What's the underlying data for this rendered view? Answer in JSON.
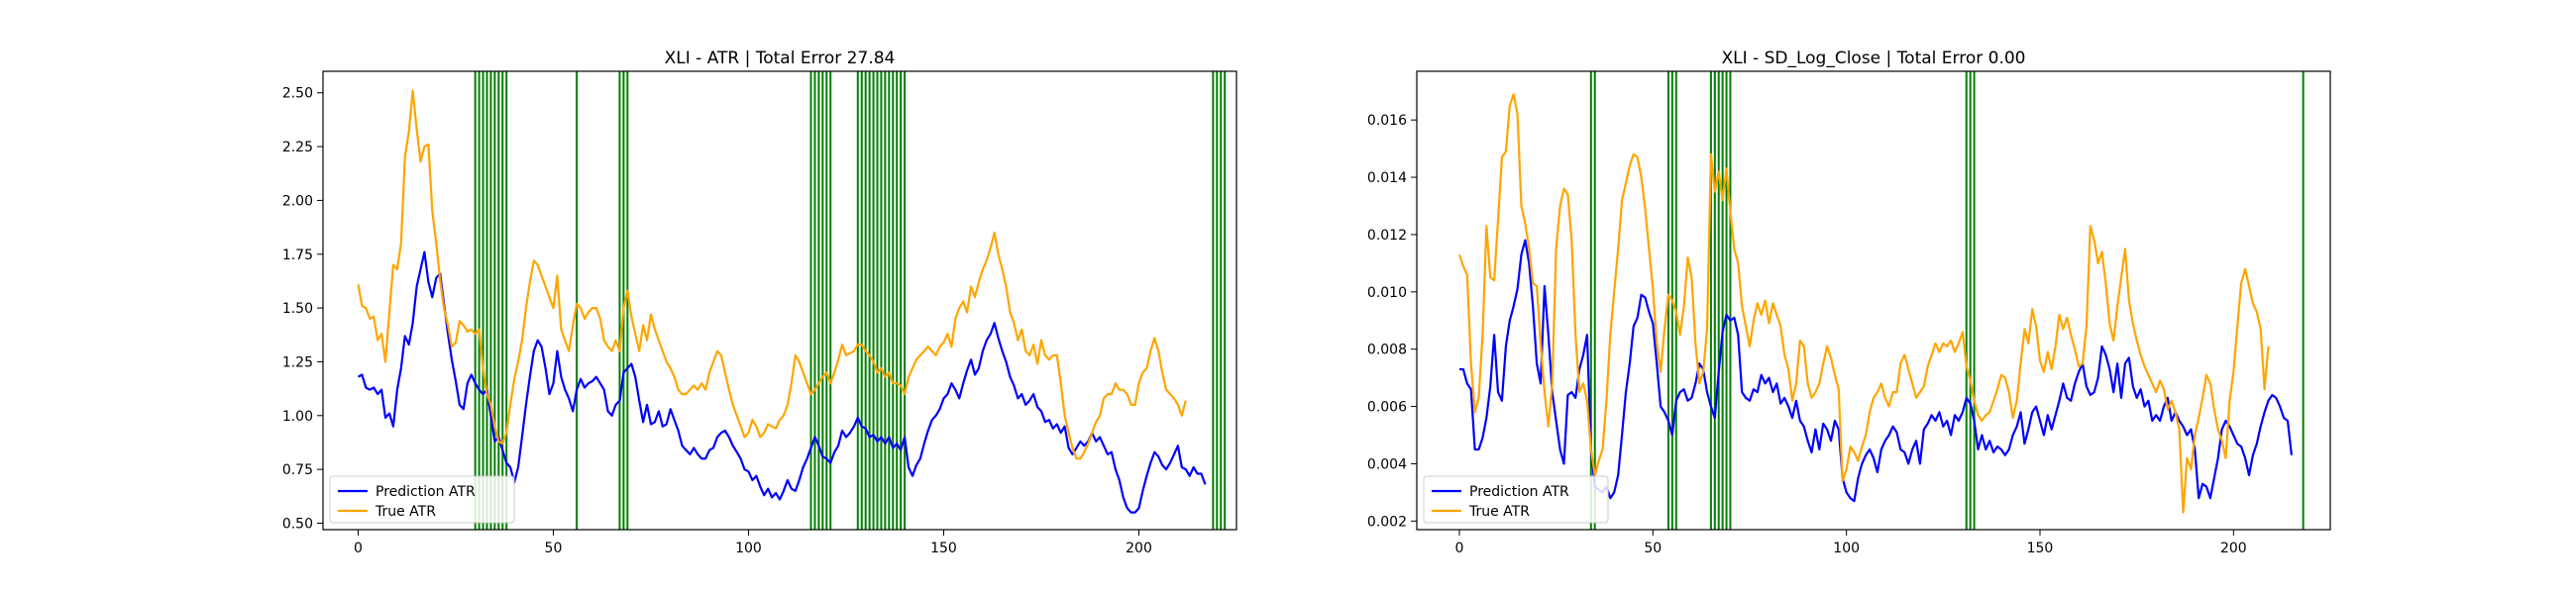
{
  "chart_data": [
    {
      "type": "line",
      "title": "XLI - ATR | Total Error 27.84",
      "xlabel": "",
      "ylabel": "",
      "xlim": [
        -9,
        225
      ],
      "ylim": [
        0.47,
        2.6
      ],
      "xticks": [
        0,
        50,
        100,
        150,
        200
      ],
      "yticks": [
        0.5,
        0.75,
        1.0,
        1.25,
        1.5,
        1.75,
        2.0,
        2.25,
        2.5
      ],
      "ytick_labels": [
        "0.50",
        "0.75",
        "1.00",
        "1.25",
        "1.50",
        "1.75",
        "2.00",
        "2.25",
        "2.50"
      ],
      "xtick_labels": [
        "0",
        "50",
        "100",
        "150",
        "200"
      ],
      "legend_position": "lower-left",
      "grid": false,
      "vlines_color": "#008000",
      "vlines": [
        30,
        31,
        32,
        33,
        34,
        35,
        36,
        37,
        38,
        56,
        67,
        68,
        69,
        116,
        117,
        118,
        119,
        120,
        121,
        128,
        129,
        130,
        131,
        132,
        133,
        134,
        135,
        136,
        137,
        138,
        139,
        140,
        219,
        220,
        221,
        222
      ],
      "series": [
        {
          "name": "Prediction ATR",
          "color": "#0000ff",
          "x_start": 0,
          "values": [
            1.18,
            1.19,
            1.13,
            1.12,
            1.13,
            1.1,
            1.12,
            0.99,
            1.01,
            0.95,
            1.12,
            1.22,
            1.37,
            1.33,
            1.43,
            1.6,
            1.68,
            1.76,
            1.62,
            1.55,
            1.64,
            1.66,
            1.52,
            1.38,
            1.26,
            1.16,
            1.05,
            1.03,
            1.15,
            1.19,
            1.15,
            1.12,
            1.1,
            1.12,
            1.0,
            0.88,
            0.9,
            0.84,
            0.78,
            0.76,
            0.69,
            0.76,
            0.9,
            1.05,
            1.18,
            1.3,
            1.35,
            1.32,
            1.22,
            1.1,
            1.15,
            1.3,
            1.18,
            1.12,
            1.08,
            1.02,
            1.12,
            1.17,
            1.13,
            1.15,
            1.16,
            1.18,
            1.15,
            1.12,
            1.02,
            1.0,
            1.05,
            1.07,
            1.2,
            1.22,
            1.24,
            1.18,
            1.07,
            0.97,
            1.05,
            0.96,
            0.97,
            1.02,
            0.95,
            0.96,
            1.03,
            0.98,
            0.93,
            0.86,
            0.84,
            0.82,
            0.85,
            0.82,
            0.8,
            0.8,
            0.84,
            0.85,
            0.9,
            0.92,
            0.93,
            0.9,
            0.86,
            0.83,
            0.8,
            0.75,
            0.74,
            0.7,
            0.72,
            0.67,
            0.63,
            0.66,
            0.62,
            0.64,
            0.61,
            0.65,
            0.7,
            0.66,
            0.65,
            0.7,
            0.76,
            0.8,
            0.85,
            0.9,
            0.86,
            0.81,
            0.8,
            0.78,
            0.83,
            0.86,
            0.93,
            0.9,
            0.92,
            0.95,
            0.99,
            0.95,
            0.94,
            0.9,
            0.91,
            0.88,
            0.9,
            0.87,
            0.9,
            0.85,
            0.87,
            0.84,
            0.9,
            0.76,
            0.72,
            0.77,
            0.8,
            0.87,
            0.93,
            0.98,
            1.0,
            1.03,
            1.08,
            1.1,
            1.15,
            1.12,
            1.08,
            1.15,
            1.21,
            1.26,
            1.19,
            1.22,
            1.3,
            1.35,
            1.38,
            1.43,
            1.36,
            1.3,
            1.25,
            1.18,
            1.14,
            1.08,
            1.1,
            1.05,
            1.07,
            1.1,
            1.04,
            1.02,
            0.97,
            0.98,
            0.94,
            0.96,
            0.92,
            0.95,
            0.85,
            0.82,
            0.85,
            0.88,
            0.86,
            0.88,
            0.92,
            0.88,
            0.9,
            0.86,
            0.82,
            0.83,
            0.75,
            0.7,
            0.62,
            0.57,
            0.55,
            0.55,
            0.57,
            0.65,
            0.72,
            0.78,
            0.83,
            0.81,
            0.77,
            0.75,
            0.78,
            0.82,
            0.86,
            0.76,
            0.75,
            0.72,
            0.76,
            0.73,
            0.73,
            0.68
          ]
        },
        {
          "name": "True ATR",
          "color": "#ffa500",
          "x_start": 0,
          "values": [
            1.61,
            1.51,
            1.5,
            1.45,
            1.46,
            1.35,
            1.38,
            1.25,
            1.48,
            1.7,
            1.68,
            1.8,
            2.2,
            2.32,
            2.51,
            2.33,
            2.18,
            2.25,
            2.26,
            1.95,
            1.8,
            1.63,
            1.5,
            1.42,
            1.32,
            1.34,
            1.44,
            1.42,
            1.39,
            1.4,
            1.38,
            1.4,
            1.22,
            1.1,
            1.05,
            0.95,
            0.88,
            0.87,
            0.92,
            1.05,
            1.17,
            1.25,
            1.35,
            1.5,
            1.62,
            1.72,
            1.7,
            1.65,
            1.6,
            1.55,
            1.5,
            1.65,
            1.4,
            1.35,
            1.3,
            1.42,
            1.52,
            1.5,
            1.45,
            1.48,
            1.5,
            1.5,
            1.45,
            1.35,
            1.32,
            1.3,
            1.35,
            1.3,
            1.5,
            1.58,
            1.46,
            1.38,
            1.3,
            1.42,
            1.35,
            1.47,
            1.4,
            1.35,
            1.3,
            1.25,
            1.22,
            1.18,
            1.12,
            1.1,
            1.1,
            1.12,
            1.14,
            1.12,
            1.15,
            1.12,
            1.2,
            1.25,
            1.3,
            1.28,
            1.2,
            1.12,
            1.05,
            1.0,
            0.95,
            0.9,
            0.92,
            0.98,
            0.95,
            0.9,
            0.92,
            0.96,
            0.95,
            0.94,
            0.98,
            1.0,
            1.05,
            1.15,
            1.28,
            1.25,
            1.2,
            1.15,
            1.1,
            1.12,
            1.15,
            1.18,
            1.2,
            1.15,
            1.2,
            1.26,
            1.33,
            1.28,
            1.29,
            1.3,
            1.33,
            1.33,
            1.3,
            1.28,
            1.25,
            1.2,
            1.22,
            1.18,
            1.2,
            1.15,
            1.15,
            1.14,
            1.1,
            1.18,
            1.22,
            1.26,
            1.28,
            1.3,
            1.32,
            1.3,
            1.28,
            1.32,
            1.34,
            1.38,
            1.32,
            1.45,
            1.5,
            1.53,
            1.48,
            1.6,
            1.55,
            1.62,
            1.68,
            1.72,
            1.78,
            1.85,
            1.75,
            1.68,
            1.6,
            1.48,
            1.43,
            1.35,
            1.4,
            1.3,
            1.28,
            1.33,
            1.24,
            1.35,
            1.28,
            1.26,
            1.28,
            1.28,
            1.15,
            1.0,
            0.92,
            0.85,
            0.8,
            0.8,
            0.83,
            0.87,
            0.92,
            0.97,
            1.0,
            1.08,
            1.1,
            1.1,
            1.15,
            1.12,
            1.12,
            1.1,
            1.05,
            1.05,
            1.15,
            1.2,
            1.22,
            1.3,
            1.36,
            1.3,
            1.2,
            1.12,
            1.1,
            1.08,
            1.05,
            1.0,
            1.07
          ]
        }
      ]
    },
    {
      "type": "line",
      "title": "XLI - SD_Log_Close | Total Error 0.00",
      "xlabel": "",
      "ylabel": "",
      "xlim": [
        -11,
        225
      ],
      "ylim": [
        0.0017,
        0.0177
      ],
      "xticks": [
        0,
        50,
        100,
        150,
        200
      ],
      "yticks": [
        0.002,
        0.004,
        0.006,
        0.008,
        0.01,
        0.012,
        0.014,
        0.016
      ],
      "ytick_labels": [
        "0.002",
        "0.004",
        "0.006",
        "0.008",
        "0.010",
        "0.012",
        "0.014",
        "0.016"
      ],
      "xtick_labels": [
        "0",
        "50",
        "100",
        "150",
        "200"
      ],
      "legend_position": "lower-left",
      "grid": false,
      "vlines_color": "#008000",
      "vlines": [
        34,
        35,
        54,
        55,
        56,
        65,
        66,
        67,
        68,
        69,
        70,
        131,
        132,
        133,
        218
      ],
      "series": [
        {
          "name": "Prediction ATR",
          "color": "#0000ff",
          "x_start": 0,
          "values": [
            0.0073,
            0.0073,
            0.0068,
            0.0066,
            0.0045,
            0.0045,
            0.0049,
            0.0056,
            0.0067,
            0.0085,
            0.0065,
            0.0062,
            0.0081,
            0.009,
            0.0095,
            0.0101,
            0.0113,
            0.0118,
            0.011,
            0.0095,
            0.0075,
            0.0068,
            0.0102,
            0.0085,
            0.0065,
            0.0055,
            0.0045,
            0.004,
            0.0064,
            0.0065,
            0.0063,
            0.0073,
            0.0078,
            0.0085,
            0.0045,
            0.0032,
            0.0031,
            0.003,
            0.0032,
            0.0028,
            0.003,
            0.0036,
            0.005,
            0.0065,
            0.0075,
            0.0088,
            0.0091,
            0.0099,
            0.0098,
            0.0093,
            0.0089,
            0.0075,
            0.006,
            0.0058,
            0.0055,
            0.005,
            0.0062,
            0.0065,
            0.0066,
            0.0062,
            0.0063,
            0.0068,
            0.0075,
            0.0073,
            0.0065,
            0.006,
            0.0056,
            0.0072,
            0.0086,
            0.0092,
            0.009,
            0.0091,
            0.0085,
            0.0065,
            0.0063,
            0.0062,
            0.0066,
            0.0065,
            0.0071,
            0.0068,
            0.007,
            0.0065,
            0.0068,
            0.0061,
            0.0063,
            0.006,
            0.0056,
            0.0062,
            0.0055,
            0.0053,
            0.0048,
            0.0044,
            0.0052,
            0.0045,
            0.0054,
            0.0052,
            0.0048,
            0.0055,
            0.0052,
            0.0035,
            0.003,
            0.0028,
            0.0027,
            0.0035,
            0.004,
            0.0043,
            0.0045,
            0.0042,
            0.0037,
            0.0045,
            0.0048,
            0.005,
            0.0053,
            0.0051,
            0.0045,
            0.0044,
            0.004,
            0.0045,
            0.0048,
            0.004,
            0.0052,
            0.0054,
            0.0057,
            0.0055,
            0.0058,
            0.0053,
            0.0055,
            0.005,
            0.0057,
            0.0055,
            0.0058,
            0.0063,
            0.0061,
            0.0055,
            0.0045,
            0.005,
            0.0045,
            0.0048,
            0.0044,
            0.0046,
            0.0045,
            0.0043,
            0.0045,
            0.005,
            0.0053,
            0.0058,
            0.0047,
            0.0052,
            0.0058,
            0.006,
            0.0055,
            0.005,
            0.0057,
            0.0052,
            0.0057,
            0.0062,
            0.0068,
            0.0063,
            0.0062,
            0.0068,
            0.0072,
            0.0075,
            0.0067,
            0.0064,
            0.0065,
            0.007,
            0.0081,
            0.0078,
            0.0073,
            0.0065,
            0.0075,
            0.0063,
            0.0075,
            0.0077,
            0.0067,
            0.0063,
            0.0066,
            0.006,
            0.0062,
            0.0055,
            0.0057,
            0.0055,
            0.006,
            0.0063,
            0.0055,
            0.0058,
            0.0055,
            0.0053,
            0.005,
            0.0052,
            0.0045,
            0.0028,
            0.0033,
            0.0032,
            0.0028,
            0.0035,
            0.0042,
            0.0052,
            0.0055,
            0.0053,
            0.005,
            0.0047,
            0.0046,
            0.0042,
            0.0036,
            0.0043,
            0.0047,
            0.0053,
            0.0058,
            0.0062,
            0.0064,
            0.0063,
            0.006,
            0.0056,
            0.0055,
            0.0043
          ]
        },
        {
          "name": "True ATR",
          "color": "#ffa500",
          "x_start": 0,
          "values": [
            0.0113,
            0.0109,
            0.0106,
            0.0075,
            0.0058,
            0.0063,
            0.0085,
            0.0123,
            0.0105,
            0.0104,
            0.0125,
            0.0147,
            0.0149,
            0.0165,
            0.0169,
            0.0162,
            0.013,
            0.0124,
            0.0115,
            0.0103,
            0.0102,
            0.0082,
            0.0065,
            0.0053,
            0.0068,
            0.0115,
            0.013,
            0.0136,
            0.0134,
            0.0118,
            0.0085,
            0.0065,
            0.0068,
            0.0062,
            0.0045,
            0.0036,
            0.0041,
            0.0045,
            0.0062,
            0.0085,
            0.01,
            0.0115,
            0.0132,
            0.0138,
            0.0144,
            0.0148,
            0.0147,
            0.014,
            0.0129,
            0.0115,
            0.0101,
            0.0082,
            0.0072,
            0.0087,
            0.0099,
            0.0097,
            0.0093,
            0.0085,
            0.0095,
            0.0112,
            0.0105,
            0.0082,
            0.0068,
            0.0072,
            0.0087,
            0.0148,
            0.0135,
            0.0142,
            0.0132,
            0.0143,
            0.0128,
            0.0115,
            0.011,
            0.0095,
            0.0088,
            0.0081,
            0.009,
            0.0096,
            0.0092,
            0.0097,
            0.0089,
            0.0096,
            0.0092,
            0.0088,
            0.0078,
            0.0073,
            0.0062,
            0.0068,
            0.0083,
            0.0081,
            0.0068,
            0.0063,
            0.0065,
            0.0068,
            0.0075,
            0.0081,
            0.0077,
            0.0071,
            0.0066,
            0.0034,
            0.0038,
            0.0046,
            0.0044,
            0.0041,
            0.0046,
            0.005,
            0.0058,
            0.0063,
            0.0065,
            0.0068,
            0.0063,
            0.006,
            0.0065,
            0.0065,
            0.0075,
            0.0078,
            0.0073,
            0.0068,
            0.0063,
            0.0065,
            0.0067,
            0.0074,
            0.0078,
            0.0082,
            0.0079,
            0.0082,
            0.0081,
            0.0083,
            0.0079,
            0.0082,
            0.0086,
            0.0074,
            0.0069,
            0.0062,
            0.0057,
            0.0055,
            0.0057,
            0.0058,
            0.0062,
            0.0066,
            0.0071,
            0.007,
            0.0065,
            0.0056,
            0.0062,
            0.0075,
            0.0087,
            0.0082,
            0.0094,
            0.0088,
            0.0076,
            0.0072,
            0.0079,
            0.0073,
            0.0081,
            0.0092,
            0.0087,
            0.0091,
            0.0085,
            0.008,
            0.0074,
            0.0075,
            0.0088,
            0.0123,
            0.0118,
            0.011,
            0.0114,
            0.0103,
            0.0089,
            0.0083,
            0.0095,
            0.0105,
            0.0115,
            0.0097,
            0.0089,
            0.0083,
            0.0078,
            0.0074,
            0.0071,
            0.0068,
            0.0065,
            0.0069,
            0.0066,
            0.0059,
            0.0062,
            0.0058,
            0.0052,
            0.0023,
            0.0042,
            0.0038,
            0.005,
            0.0056,
            0.0063,
            0.0071,
            0.0068,
            0.0059,
            0.0052,
            0.0048,
            0.0042,
            0.0062,
            0.0072,
            0.0088,
            0.0103,
            0.0108,
            0.0102,
            0.0096,
            0.0093,
            0.0087,
            0.0066,
            0.0081
          ]
        }
      ]
    }
  ]
}
